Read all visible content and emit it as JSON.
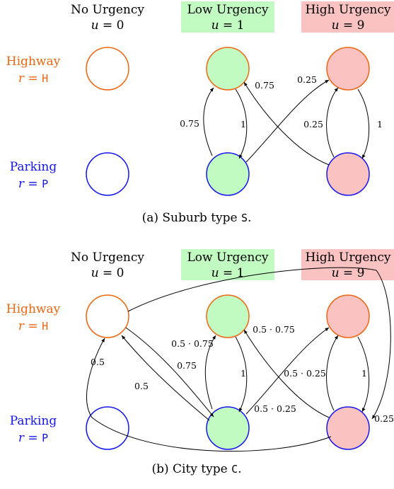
{
  "colors": {
    "highway": "#ee6611",
    "parking": "#1515ee",
    "low_fill": "#c2fbc2",
    "high_fill": "#fbc2c2",
    "none_fill": "#ffffff",
    "edge": "#000000"
  },
  "headers": [
    {
      "title": "No Urgency",
      "var": "u",
      "value": "= 0",
      "fill": "none"
    },
    {
      "title": "Low Urgency",
      "var": "u",
      "value": "= 1",
      "fill": "low"
    },
    {
      "title": "High Urgency",
      "var": "u",
      "value": "= 9",
      "fill": "high"
    }
  ],
  "rows": [
    {
      "title": "Highway",
      "var": "r",
      "eq": " = ",
      "code": "H",
      "color": "highway"
    },
    {
      "title": "Parking",
      "var": "r",
      "eq": " = ",
      "code": "P",
      "color": "parking"
    }
  ],
  "panels": [
    {
      "caption_prefix": "(a) Suburb type ",
      "caption_code": "S",
      "caption_suffix": ".",
      "edges": [
        {
          "from": "L_P",
          "to": "L_H",
          "label": "0.75"
        },
        {
          "from": "L_H",
          "to": "L_P",
          "label": "1"
        },
        {
          "from": "L_P",
          "to": "H_H",
          "label": "0.25"
        },
        {
          "from": "H_P",
          "to": "L_H",
          "label": "0.75"
        },
        {
          "from": "H_P",
          "to": "H_H",
          "label": "0.25"
        },
        {
          "from": "H_H",
          "to": "H_P",
          "label": "1"
        }
      ]
    },
    {
      "caption_prefix": "(b) City type ",
      "caption_code": "C",
      "caption_suffix": ".",
      "edges": [
        {
          "from": "L_P",
          "to": "L_H",
          "label": "0.5 · 0.75"
        },
        {
          "from": "L_H",
          "to": "L_P",
          "label": "1"
        },
        {
          "from": "L_P",
          "to": "H_H",
          "label": "0.5 · 0.25"
        },
        {
          "from": "H_P",
          "to": "L_H",
          "label": "0.5 · 0.75"
        },
        {
          "from": "H_P",
          "to": "H_H",
          "label": "0.5 · 0.25"
        },
        {
          "from": "H_H",
          "to": "H_P",
          "label": "1"
        },
        {
          "from": "N_H",
          "to": "L_P",
          "label": "0.75"
        },
        {
          "from": "L_P",
          "to": "N_H",
          "label": "0.5"
        },
        {
          "from": "H_P",
          "to": "N_H",
          "label": "0.5"
        },
        {
          "from": "N_H",
          "to": "H_P",
          "label": "0.25"
        }
      ]
    }
  ]
}
